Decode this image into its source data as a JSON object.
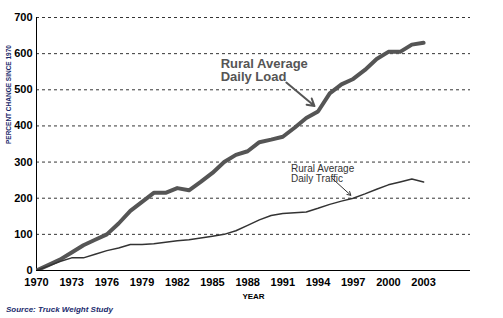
{
  "chart_data": {
    "type": "line",
    "xlabel": "YEAR",
    "ylabel": "PERCENT CHANGE SINCE 1970",
    "source": "Source: Truck Weight Study",
    "x": [
      1970,
      1971,
      1972,
      1973,
      1974,
      1975,
      1976,
      1977,
      1978,
      1979,
      1980,
      1981,
      1982,
      1983,
      1984,
      1985,
      1986,
      1987,
      1988,
      1989,
      1990,
      1991,
      1992,
      1993,
      1994,
      1995,
      1996,
      1997,
      1998,
      1999,
      2000,
      2001,
      2002,
      2003
    ],
    "series": [
      {
        "name": "Rural Average Daily Load",
        "color": "#555555",
        "values": [
          0,
          15,
          30,
          50,
          70,
          85,
          100,
          130,
          165,
          190,
          215,
          215,
          228,
          222,
          245,
          270,
          300,
          320,
          330,
          355,
          362,
          370,
          395,
          422,
          440,
          490,
          515,
          530,
          555,
          585,
          605,
          605,
          625,
          630
        ]
      },
      {
        "name": "Rural Average Daily Traffic",
        "color": "#333333",
        "values": [
          0,
          12,
          25,
          35,
          35,
          45,
          55,
          62,
          72,
          72,
          74,
          78,
          82,
          85,
          90,
          95,
          100,
          110,
          125,
          140,
          152,
          158,
          160,
          162,
          172,
          183,
          192,
          200,
          212,
          225,
          237,
          245,
          253,
          245
        ]
      }
    ],
    "xlim": [
      1970,
      2007
    ],
    "xticks": [
      1970,
      1973,
      1976,
      1979,
      1982,
      1985,
      1988,
      1991,
      1994,
      1997,
      2000,
      2003
    ],
    "ylim": [
      0,
      700
    ],
    "yticks": [
      0,
      100,
      200,
      300,
      400,
      500,
      600,
      700
    ],
    "grid": true
  }
}
